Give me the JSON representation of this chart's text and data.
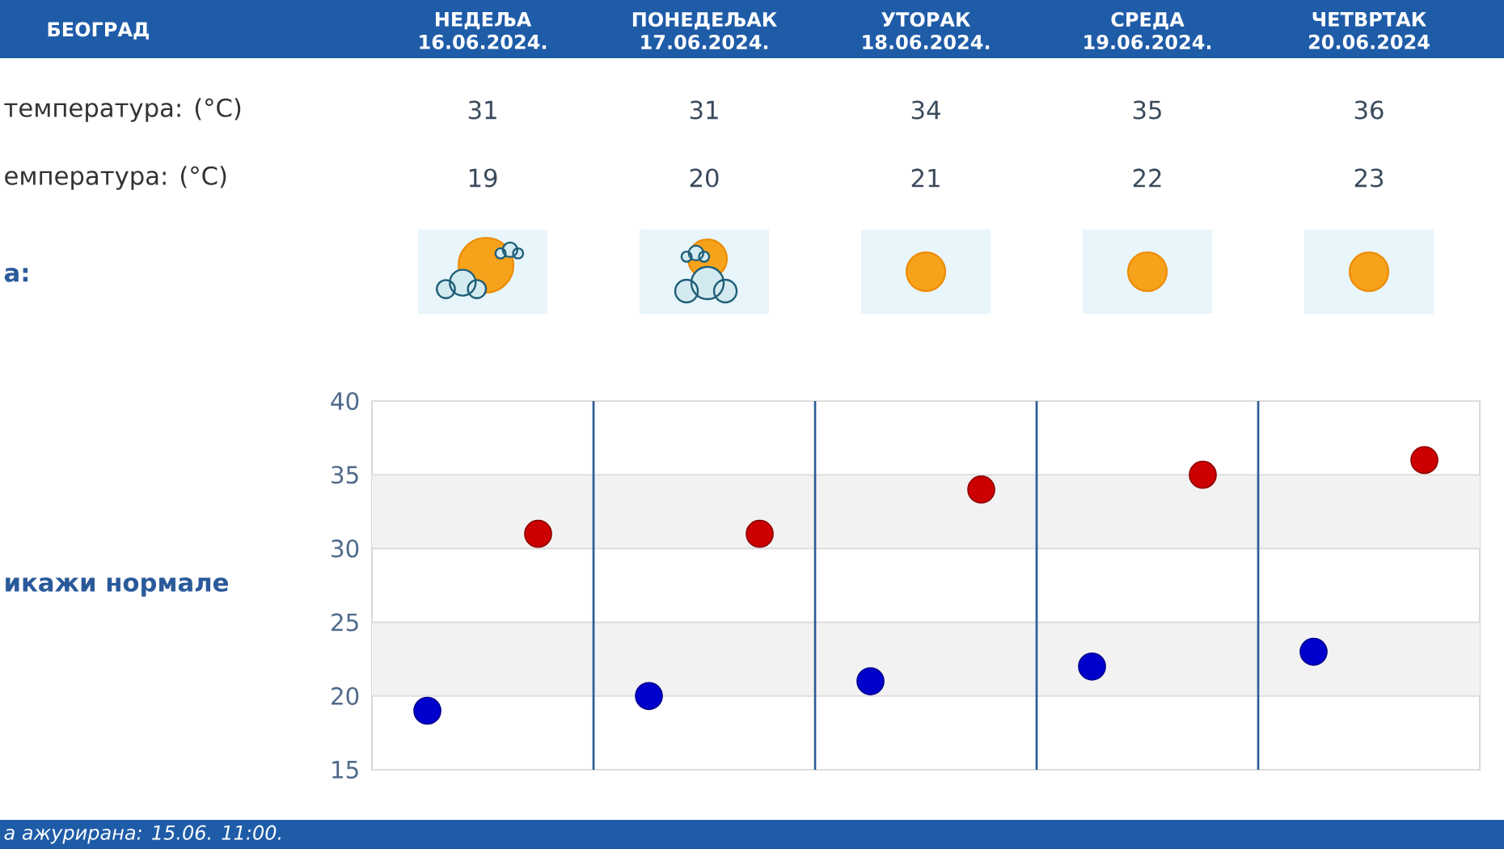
{
  "chart_data": {
    "type": "scatter",
    "title": "БЕОГРАД",
    "categories": [
      null,
      null,
      null,
      null,
      null
    ],
    "series": [
      {
        "color": "#cc0000",
        "values": [
          31,
          31,
          34,
          35,
          36
        ]
      },
      {
        "color": "#0000cc",
        "values": [
          19,
          20,
          21,
          22,
          23
        ]
      }
    ],
    "ylim": [
      15,
      40
    ],
    "yticks": [
      15,
      20,
      25,
      30,
      35,
      40
    ],
    "grid": true,
    "marker": "circle",
    "data_labels": true,
    "bands": [
      {
        "axis": "y",
        "from": 30,
        "to": 35,
        "color": "#f2f2f2"
      },
      {
        "axis": "y",
        "from": 20,
        "to": 25,
        "color": "#f2f2f2"
      }
    ],
    "annotations": [
      "НЕДЕЉА 16.06.2024.",
      "ПОНЕДЕЉАК 17.06.2024.",
      "УТОРАК 18.06.2024.",
      "СРЕДА 19.06.2024.",
      "ЧЕТВРТАК 20.06.2024",
      "температура: (°C)",
      "емпература: (°C)",
      "а:",
      "икажи нормале",
      "а ажурирана:  15.06. 11:00."
    ]
  }
}
